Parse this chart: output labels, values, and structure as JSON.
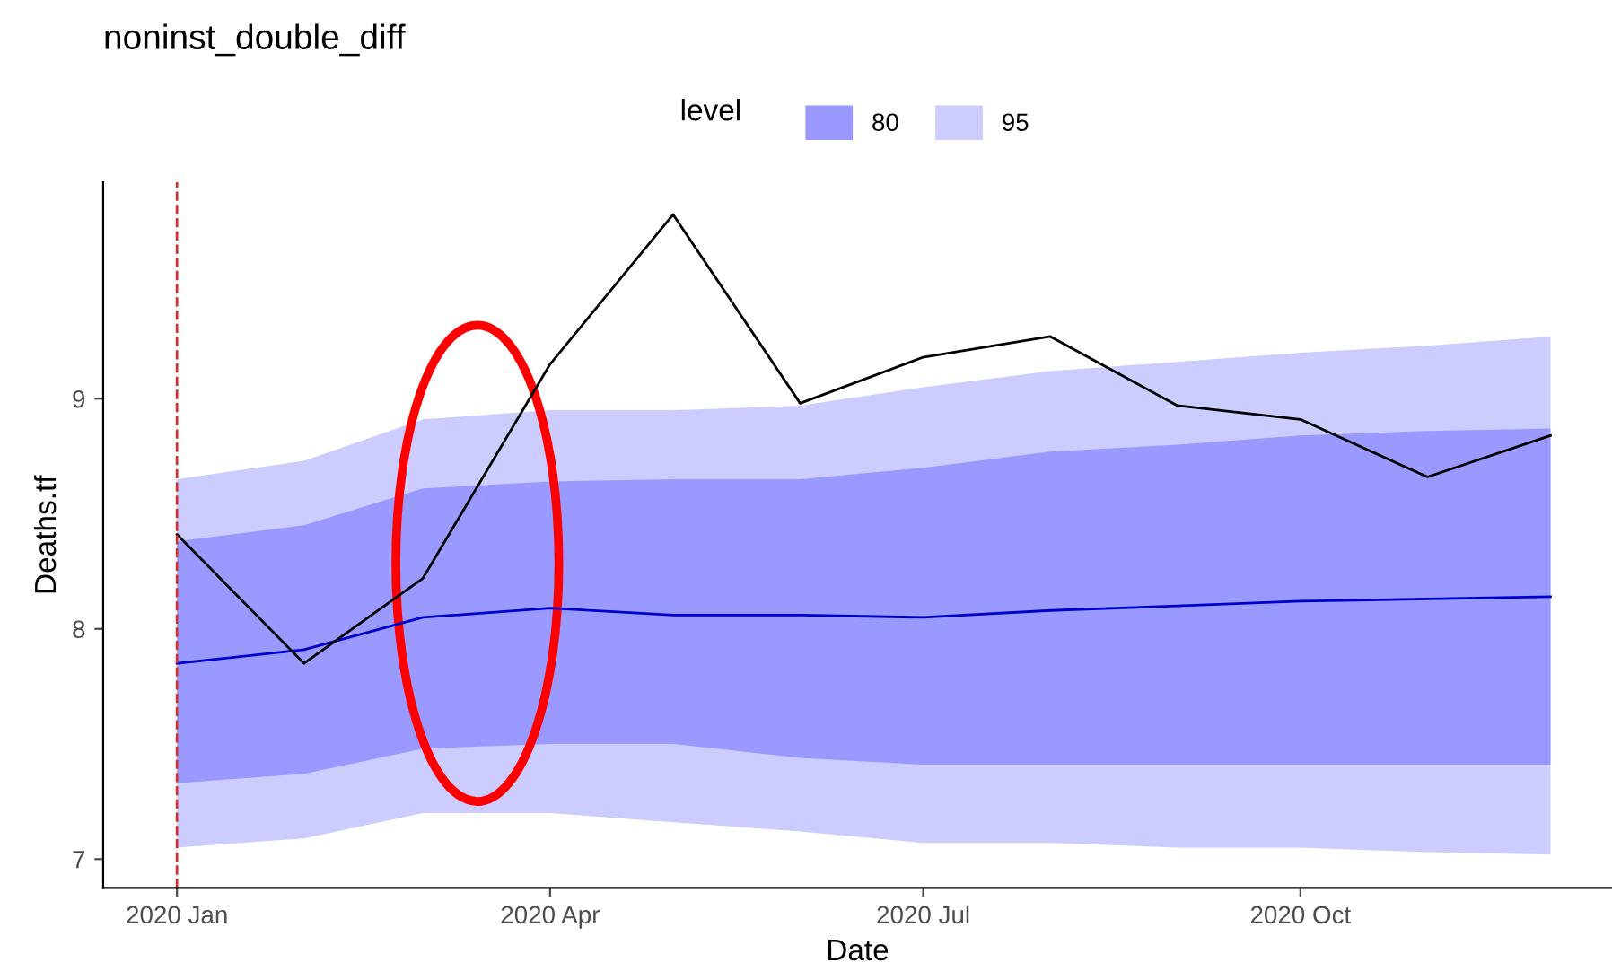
{
  "chart_data": {
    "type": "line",
    "title": "noninst_double_diff",
    "xlabel": "Date",
    "ylabel": "Deaths.tf",
    "legend_title": "level",
    "legend": "top",
    "grid": false,
    "marker": "none",
    "line_style": "solid",
    "x": [
      "2020-01",
      "2020-02",
      "2020-03",
      "2020-04",
      "2020-05",
      "2020-06",
      "2020-07",
      "2020-08",
      "2020-09",
      "2020-10",
      "2020-11",
      "2020-12"
    ],
    "series": [
      {
        "type": "area",
        "name": "95",
        "color": "#ccccff",
        "values": [
          null,
          null,
          null,
          null,
          null,
          null,
          null,
          null,
          null,
          null,
          null,
          null
        ],
        "lower": [
          7.05,
          7.09,
          7.2,
          7.2,
          7.16,
          7.12,
          7.07,
          7.07,
          7.05,
          7.05,
          7.03,
          7.02
        ],
        "upper": [
          8.65,
          8.73,
          8.91,
          8.95,
          8.95,
          8.97,
          9.05,
          9.12,
          9.16,
          9.2,
          9.23,
          9.27
        ]
      },
      {
        "type": "area",
        "name": "80",
        "color": "#9999ff",
        "values": [
          null,
          null,
          null,
          null,
          null,
          null,
          null,
          null,
          null,
          null,
          null,
          null
        ],
        "lower": [
          7.33,
          7.37,
          7.48,
          7.5,
          7.5,
          7.44,
          7.41,
          7.41,
          7.41,
          7.41,
          7.41,
          7.41
        ],
        "upper": [
          8.38,
          8.45,
          8.61,
          8.64,
          8.65,
          8.65,
          8.7,
          8.77,
          8.8,
          8.84,
          8.86,
          8.87
        ]
      },
      {
        "type": "line",
        "color": "#0000cc",
        "values": [
          7.85,
          7.91,
          8.05,
          8.09,
          8.06,
          8.06,
          8.05,
          8.08,
          8.1,
          8.12,
          8.13,
          8.14
        ]
      },
      {
        "color": "#000000",
        "values": [
          8.41,
          7.85,
          8.22,
          9.15,
          9.8,
          8.98,
          9.18,
          9.27,
          8.97,
          8.91,
          8.66,
          8.84
        ]
      }
    ],
    "ref_lines": [
      {
        "axis": "x",
        "value": "2020-01",
        "color": "#cc3333",
        "line_style": "dashed"
      }
    ],
    "xlim": [
      "2019-12-14",
      "2020-12-16"
    ],
    "xticks": [
      {
        "value": "2020-01",
        "label": "2020 Jan"
      },
      {
        "value": "2020-04",
        "label": "2020 Apr"
      },
      {
        "value": "2020-07",
        "label": "2020 Jul"
      },
      {
        "value": "2020-10",
        "label": "2020 Oct"
      }
    ],
    "ylim": [
      6.875,
      9.94
    ],
    "yticks": [
      7,
      8,
      9
    ]
  }
}
